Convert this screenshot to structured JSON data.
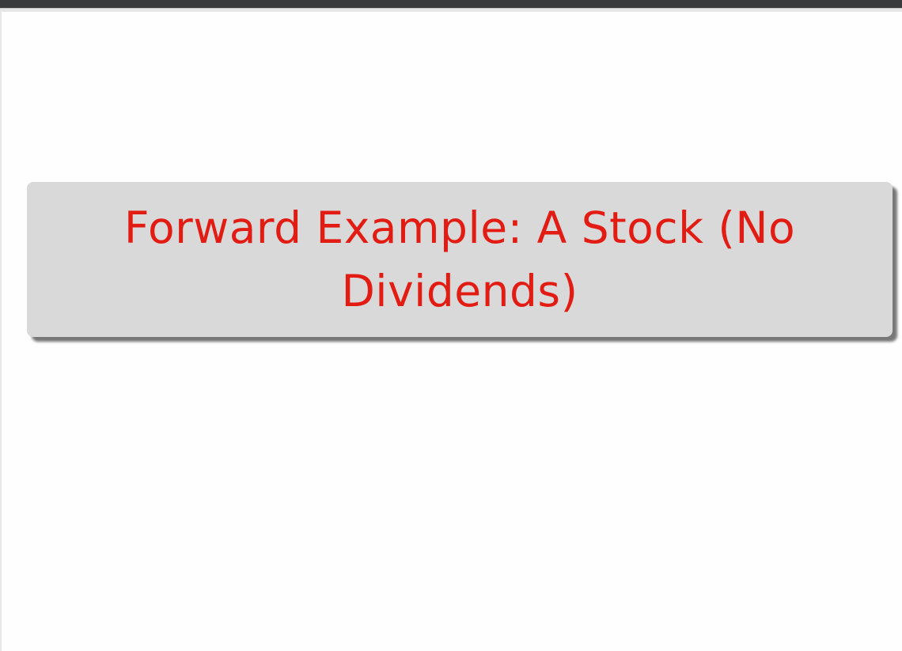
{
  "slide": {
    "title": "Forward Example: A Stock (No Dividends)"
  },
  "colors": {
    "title_text": "#e21c13",
    "title_box_bg": "#d9d9d9",
    "top_bar": "#3a3b3d",
    "slide_bg": "#fefefe"
  }
}
